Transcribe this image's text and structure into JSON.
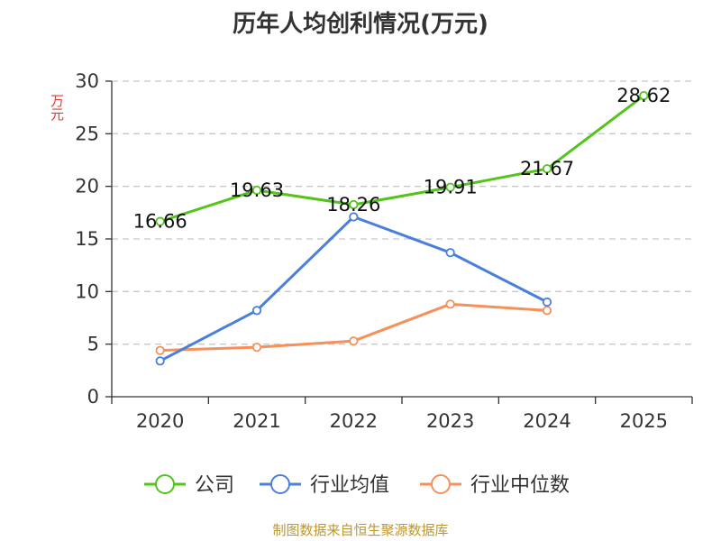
{
  "chart_data": {
    "type": "line",
    "title": "历年人均创利情况(万元)",
    "ylabel": "万元",
    "categories": [
      "2020",
      "2021",
      "2022",
      "2023",
      "2024",
      "2025"
    ],
    "ylim": [
      0,
      30
    ],
    "yticks": [
      0,
      5,
      10,
      15,
      20,
      25,
      30
    ],
    "grid": true,
    "legend_position": "bottom",
    "series": [
      {
        "name": "公司",
        "color": "#52c41a",
        "values": [
          16.66,
          19.63,
          18.26,
          19.91,
          21.67,
          28.62
        ],
        "show_labels": true
      },
      {
        "name": "行业均值",
        "color": "#4a7fdc",
        "values": [
          3.4,
          8.2,
          17.1,
          13.7,
          9.0,
          null
        ],
        "show_labels": false
      },
      {
        "name": "行业中位数",
        "color": "#f6905b",
        "values": [
          4.4,
          4.7,
          5.3,
          8.8,
          8.2,
          null
        ],
        "show_labels": false
      }
    ]
  },
  "footer": "制图数据来自恒生聚源数据库"
}
